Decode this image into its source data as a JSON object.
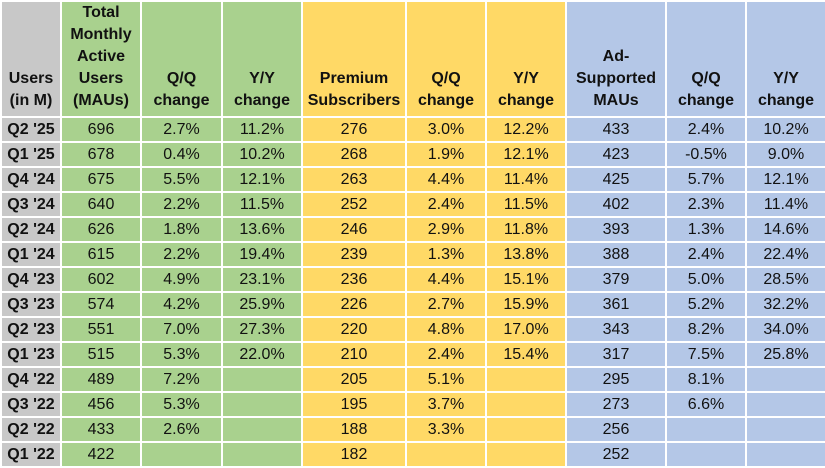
{
  "headers": {
    "period": "Users (in M)",
    "total_maus": "Total Monthly Active Users (MAUs)",
    "total_qq": "Q/Q change",
    "total_yy": "Y/Y change",
    "premium": "Premium Subscribers",
    "premium_qq": "Q/Q change",
    "premium_yy": "Y/Y change",
    "ad_maus": "Ad-Supported MAUs",
    "ad_qq": "Q/Q change",
    "ad_yy": "Y/Y change"
  },
  "colors": {
    "label_gray": "#c8c8c8",
    "total_green": "#a9d18e",
    "premium_yellow": "#ffd966",
    "ad_blue": "#b4c7e7"
  },
  "rows": [
    {
      "period": "Q2 '25",
      "total": "696",
      "total_qq": "2.7%",
      "total_yy": "11.2%",
      "premium": "276",
      "premium_qq": "3.0%",
      "premium_yy": "12.2%",
      "ad": "433",
      "ad_qq": "2.4%",
      "ad_yy": "10.2%"
    },
    {
      "period": "Q1 '25",
      "total": "678",
      "total_qq": "0.4%",
      "total_yy": "10.2%",
      "premium": "268",
      "premium_qq": "1.9%",
      "premium_yy": "12.1%",
      "ad": "423",
      "ad_qq": "-0.5%",
      "ad_yy": "9.0%"
    },
    {
      "period": "Q4 '24",
      "total": "675",
      "total_qq": "5.5%",
      "total_yy": "12.1%",
      "premium": "263",
      "premium_qq": "4.4%",
      "premium_yy": "11.4%",
      "ad": "425",
      "ad_qq": "5.7%",
      "ad_yy": "12.1%"
    },
    {
      "period": "Q3 '24",
      "total": "640",
      "total_qq": "2.2%",
      "total_yy": "11.5%",
      "premium": "252",
      "premium_qq": "2.4%",
      "premium_yy": "11.5%",
      "ad": "402",
      "ad_qq": "2.3%",
      "ad_yy": "11.4%"
    },
    {
      "period": "Q2 '24",
      "total": "626",
      "total_qq": "1.8%",
      "total_yy": "13.6%",
      "premium": "246",
      "premium_qq": "2.9%",
      "premium_yy": "11.8%",
      "ad": "393",
      "ad_qq": "1.3%",
      "ad_yy": "14.6%"
    },
    {
      "period": "Q1 '24",
      "total": "615",
      "total_qq": "2.2%",
      "total_yy": "19.4%",
      "premium": "239",
      "premium_qq": "1.3%",
      "premium_yy": "13.8%",
      "ad": "388",
      "ad_qq": "2.4%",
      "ad_yy": "22.4%"
    },
    {
      "period": "Q4 '23",
      "total": "602",
      "total_qq": "4.9%",
      "total_yy": "23.1%",
      "premium": "236",
      "premium_qq": "4.4%",
      "premium_yy": "15.1%",
      "ad": "379",
      "ad_qq": "5.0%",
      "ad_yy": "28.5%"
    },
    {
      "period": "Q3 '23",
      "total": "574",
      "total_qq": "4.2%",
      "total_yy": "25.9%",
      "premium": "226",
      "premium_qq": "2.7%",
      "premium_yy": "15.9%",
      "ad": "361",
      "ad_qq": "5.2%",
      "ad_yy": "32.2%"
    },
    {
      "period": "Q2 '23",
      "total": "551",
      "total_qq": "7.0%",
      "total_yy": "27.3%",
      "premium": "220",
      "premium_qq": "4.8%",
      "premium_yy": "17.0%",
      "ad": "343",
      "ad_qq": "8.2%",
      "ad_yy": "34.0%"
    },
    {
      "period": "Q1 '23",
      "total": "515",
      "total_qq": "5.3%",
      "total_yy": "22.0%",
      "premium": "210",
      "premium_qq": "2.4%",
      "premium_yy": "15.4%",
      "ad": "317",
      "ad_qq": "7.5%",
      "ad_yy": "25.8%"
    },
    {
      "period": "Q4 '22",
      "total": "489",
      "total_qq": "7.2%",
      "total_yy": "",
      "premium": "205",
      "premium_qq": "5.1%",
      "premium_yy": "",
      "ad": "295",
      "ad_qq": "8.1%",
      "ad_yy": ""
    },
    {
      "period": "Q3 '22",
      "total": "456",
      "total_qq": "5.3%",
      "total_yy": "",
      "premium": "195",
      "premium_qq": "3.7%",
      "premium_yy": "",
      "ad": "273",
      "ad_qq": "6.6%",
      "ad_yy": ""
    },
    {
      "period": "Q2 '22",
      "total": "433",
      "total_qq": "2.6%",
      "total_yy": "",
      "premium": "188",
      "premium_qq": "3.3%",
      "premium_yy": "",
      "ad": "256",
      "ad_qq": "",
      "ad_yy": ""
    },
    {
      "period": "Q1 '22",
      "total": "422",
      "total_qq": "",
      "total_yy": "",
      "premium": "182",
      "premium_qq": "",
      "premium_yy": "",
      "ad": "252",
      "ad_qq": "",
      "ad_yy": ""
    }
  ]
}
